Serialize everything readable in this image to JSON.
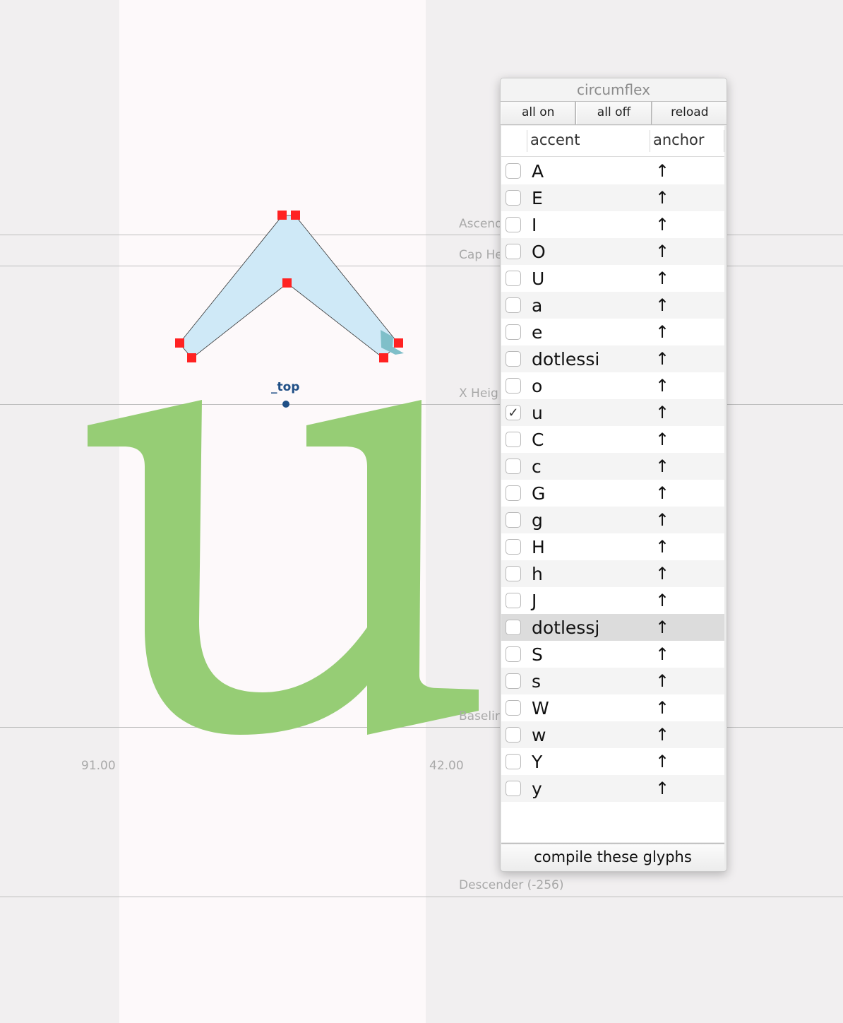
{
  "metrics": {
    "ascender": "Ascend",
    "cap_height": "Cap He",
    "x_height": "X Heig",
    "baseline": "Baselir",
    "descender": "Descender (-256)"
  },
  "sidebearings": {
    "left": "91.00",
    "right": "42.00"
  },
  "anchor": {
    "name": "_top"
  },
  "colors": {
    "glyph_fill": "#96cd75",
    "accent_fill": "#cfe9f7",
    "point": "#ff2222",
    "anchor": "#1f4f86"
  },
  "panel": {
    "title": "circumflex",
    "buttons": {
      "all_on": "all on",
      "all_off": "all off",
      "reload": "reload"
    },
    "columns": {
      "accent": "accent",
      "anchor": "anchor"
    },
    "rows": [
      {
        "glyph": "A",
        "checked": false,
        "anchor_icon": "↑"
      },
      {
        "glyph": "E",
        "checked": false,
        "anchor_icon": "↑"
      },
      {
        "glyph": "I",
        "checked": false,
        "anchor_icon": "↑"
      },
      {
        "glyph": "O",
        "checked": false,
        "anchor_icon": "↑"
      },
      {
        "glyph": "U",
        "checked": false,
        "anchor_icon": "↑"
      },
      {
        "glyph": "a",
        "checked": false,
        "anchor_icon": "↑"
      },
      {
        "glyph": "e",
        "checked": false,
        "anchor_icon": "↑"
      },
      {
        "glyph": "dotlessi",
        "checked": false,
        "anchor_icon": "↑"
      },
      {
        "glyph": "o",
        "checked": false,
        "anchor_icon": "↑"
      },
      {
        "glyph": "u",
        "checked": true,
        "anchor_icon": "↑"
      },
      {
        "glyph": "C",
        "checked": false,
        "anchor_icon": "↑"
      },
      {
        "glyph": "c",
        "checked": false,
        "anchor_icon": "↑"
      },
      {
        "glyph": "G",
        "checked": false,
        "anchor_icon": "↑"
      },
      {
        "glyph": "g",
        "checked": false,
        "anchor_icon": "↑"
      },
      {
        "glyph": "H",
        "checked": false,
        "anchor_icon": "↑"
      },
      {
        "glyph": "h",
        "checked": false,
        "anchor_icon": "↑"
      },
      {
        "glyph": "J",
        "checked": false,
        "anchor_icon": "↑"
      },
      {
        "glyph": "dotlessj",
        "checked": false,
        "anchor_icon": "↑",
        "selected": true
      },
      {
        "glyph": "S",
        "checked": false,
        "anchor_icon": "↑"
      },
      {
        "glyph": "s",
        "checked": false,
        "anchor_icon": "↑"
      },
      {
        "glyph": "W",
        "checked": false,
        "anchor_icon": "↑"
      },
      {
        "glyph": "w",
        "checked": false,
        "anchor_icon": "↑"
      },
      {
        "glyph": "Y",
        "checked": false,
        "anchor_icon": "↑"
      },
      {
        "glyph": "y",
        "checked": false,
        "anchor_icon": "↑"
      }
    ],
    "compile_label": "compile these glyphs"
  }
}
